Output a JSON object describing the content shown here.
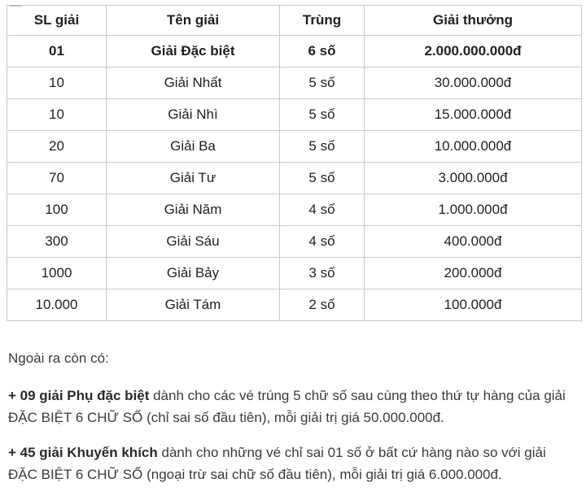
{
  "table": {
    "headers": [
      "SL giải",
      "Tên giải",
      "Trùng",
      "Giải thưởng"
    ],
    "rows": [
      {
        "qty": "01",
        "name": "Giải Đặc biệt",
        "match": "6 số",
        "prize": "2.000.000.000đ",
        "bold": true
      },
      {
        "qty": "10",
        "name": "Giải Nhất",
        "match": "5 số",
        "prize": "30.000.000đ",
        "bold": false
      },
      {
        "qty": "10",
        "name": "Giải Nhì",
        "match": "5 số",
        "prize": "15.000.000đ",
        "bold": false
      },
      {
        "qty": "20",
        "name": "Giải Ba",
        "match": "5 số",
        "prize": "10.000.000đ",
        "bold": false
      },
      {
        "qty": "70",
        "name": "Giải Tư",
        "match": "5 số",
        "prize": "3.000.000đ",
        "bold": false
      },
      {
        "qty": "100",
        "name": "Giải Năm",
        "match": "4 số",
        "prize": "1.000.000đ",
        "bold": false
      },
      {
        "qty": "300",
        "name": "Giải Sáu",
        "match": "4 số",
        "prize": "400.000đ",
        "bold": false
      },
      {
        "qty": "1000",
        "name": "Giải Bảy",
        "match": "3 số",
        "prize": "200.000đ",
        "bold": false
      },
      {
        "qty": "10.000",
        "name": "Giải Tám",
        "match": "2 số",
        "prize": "100.000đ",
        "bold": false
      }
    ]
  },
  "notes": {
    "intro": "Ngoài ra còn có:",
    "paragraphs": [
      {
        "bold": "+ 09 giải Phụ đặc biệt",
        "rest": " dành cho các vé trúng 5 chữ số sau cùng theo thứ tự hàng của giải ĐẶC BIỆT 6 CHỮ SỐ (chỉ sai số đầu tiên), mỗi giải trị giá 50.000.000đ."
      },
      {
        "bold": "+ 45 giải Khuyến khích",
        "rest": " dành cho những vé chỉ sai 01 số ở bất cứ hàng nào so với giải ĐẶC BIỆT 6 CHỮ SỐ (ngoại trừ sai chữ số đầu tiên), mỗi giải trị giá 6.000.000đ."
      }
    ]
  }
}
